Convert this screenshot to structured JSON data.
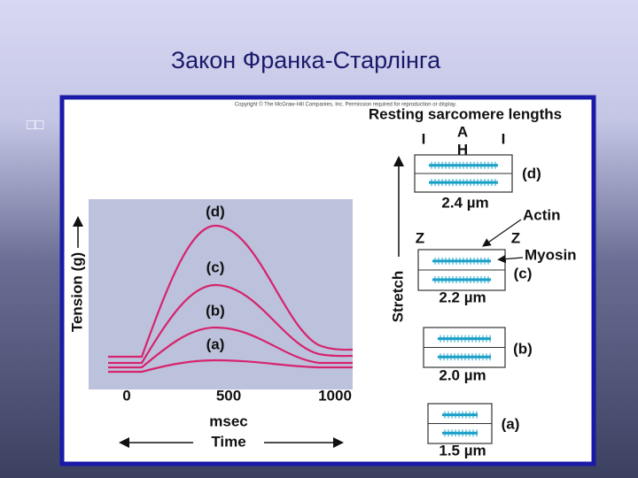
{
  "title": "Закон Франка-Старлінга",
  "placeholder": "□□",
  "figure": {
    "copyright": "Copyright © The McGraw-Hill Companies, Inc. Permission required for reproduction or display.",
    "plot": {
      "y_label": "Tension (g)",
      "x_unit": "msec",
      "x_label": "Time",
      "xticks": [
        0,
        500,
        1000
      ],
      "curve_labels": [
        "(a)",
        "(b)",
        "(c)",
        "(d)"
      ]
    },
    "sarcomeres": {
      "title": "Resting sarcomere lengths",
      "stretch": "Stretch",
      "band_labels": [
        "I",
        "A",
        "I",
        "H"
      ],
      "z_labels": [
        "Z",
        "Z"
      ],
      "actin": "Actin",
      "myosin": "Myosin",
      "items": [
        {
          "label": "(d)",
          "length": "2.4 µm"
        },
        {
          "label": "(c)",
          "length": "2.2 µm"
        },
        {
          "label": "(b)",
          "length": "2.0 µm"
        },
        {
          "label": "(a)",
          "length": "1.5 µm"
        }
      ]
    }
  }
}
